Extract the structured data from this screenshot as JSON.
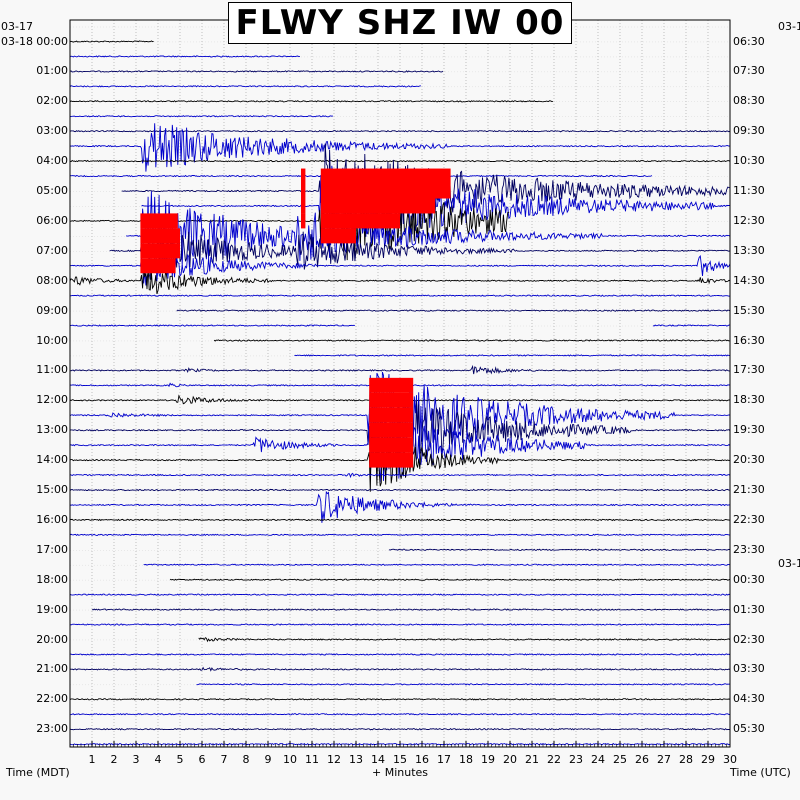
{
  "title": "FLWY SHZ IW 00",
  "left_dates": {
    "top": "03-17",
    "row0": "03-18"
  },
  "right_dates": {
    "top": "03-1",
    "middle": "03-1"
  },
  "left_axis_label": "Time (MDT)",
  "right_axis_label": "Time (UTC)",
  "x_axis_label": "+ Minutes",
  "colors": {
    "blue": "#0000cc",
    "navy": "#000060",
    "black": "#000000",
    "red": "#ff0000",
    "grid": "#999999"
  },
  "chart_data": {
    "type": "line",
    "title": "FLWY SHZ IW 00",
    "xlabel": "+ Minutes",
    "ylabel_left": "Time (MDT)",
    "ylabel_right": "Time (UTC)",
    "xlim": [
      0,
      30
    ],
    "x_ticks": [
      "1",
      "2",
      "3",
      "4",
      "5",
      "6",
      "7",
      "8",
      "9",
      "10",
      "11",
      "12",
      "13",
      "14",
      "15",
      "16",
      "17",
      "18",
      "19",
      "20",
      "21",
      "22",
      "23",
      "24",
      "25",
      "26",
      "27",
      "28",
      "29",
      "30"
    ],
    "rows_per_hour": 2,
    "left_hour_labels": [
      "00:00",
      "01:00",
      "02:00",
      "03:00",
      "04:00",
      "05:00",
      "06:00",
      "07:00",
      "08:00",
      "09:00",
      "10:00",
      "11:00",
      "12:00",
      "13:00",
      "14:00",
      "15:00",
      "16:00",
      "17:00",
      "18:00",
      "19:00",
      "20:00",
      "21:00",
      "22:00",
      "23:00"
    ],
    "right_hour_labels": [
      "06:30",
      "07:30",
      "08:30",
      "09:30",
      "10:30",
      "11:30",
      "12:30",
      "13:30",
      "14:30",
      "15:30",
      "16:30",
      "17:30",
      "18:30",
      "19:30",
      "20:30",
      "21:30",
      "22:30",
      "23:30",
      "00:30",
      "01:30",
      "02:30",
      "03:30",
      "04:30",
      "05:30"
    ],
    "trace_colors": [
      "#000000",
      "#0000cc",
      "#000060",
      "#0000cc"
    ],
    "gaps": [
      {
        "row": 0,
        "x0": 3.8,
        "x1": 30
      },
      {
        "row": 1,
        "x0": 10.5,
        "x1": 30
      },
      {
        "row": 2,
        "x0": 17.0,
        "x1": 30
      },
      {
        "row": 3,
        "x0": 16.0,
        "x1": 30
      },
      {
        "row": 4,
        "x0": 22.0,
        "x1": 30
      },
      {
        "row": 5,
        "x0": 12.0,
        "x1": 30
      },
      {
        "row": 9,
        "x0": 26.5,
        "x1": 30
      },
      {
        "row": 10,
        "x0": 0,
        "x1": 2.3
      },
      {
        "row": 11,
        "x0": 0,
        "x1": 3.2
      },
      {
        "row": 12,
        "x0": 20.0,
        "x1": 30
      },
      {
        "row": 13,
        "x0": 0,
        "x1": 2.5
      },
      {
        "row": 14,
        "x0": 0,
        "x1": 1.8
      },
      {
        "row": 18,
        "x0": 0,
        "x1": 4.8
      },
      {
        "row": 19,
        "x0": 13.0,
        "x1": 26.5
      },
      {
        "row": 20,
        "x0": 0,
        "x1": 6.5
      },
      {
        "row": 21,
        "x0": 0,
        "x1": 10.2
      },
      {
        "row": 34,
        "x0": 0,
        "x1": 14.5
      },
      {
        "row": 35,
        "x0": 0,
        "x1": 3.3
      },
      {
        "row": 36,
        "x0": 0,
        "x1": 4.5
      },
      {
        "row": 38,
        "x0": 0,
        "x1": 1.0
      },
      {
        "row": 40,
        "x0": 0,
        "x1": 5.8
      },
      {
        "row": 43,
        "x0": 0,
        "x1": 5.7
      }
    ],
    "events": [
      {
        "row": 7,
        "x": 3.2,
        "peak": 28,
        "duration": 14,
        "color": "#0000cc"
      },
      {
        "row": 13,
        "x": 3.2,
        "peak": 50,
        "duration": 12,
        "color": "#0000cc"
      },
      {
        "row": 14,
        "x": 3.2,
        "peak": 35,
        "duration": 10,
        "color": "#000060"
      },
      {
        "row": 15,
        "x": 3.2,
        "peak": 24,
        "duration": 8,
        "color": "#0000cc"
      },
      {
        "row": 16,
        "x": 0,
        "peak": 6,
        "duration": 3,
        "color": "#000000"
      },
      {
        "row": 16,
        "x": 3.2,
        "peak": 18,
        "duration": 6,
        "color": "#000000"
      },
      {
        "row": 10,
        "x": 11.3,
        "peak": 50,
        "duration": 20,
        "color": "#0000cc"
      },
      {
        "row": 11,
        "x": 11.3,
        "peak": 50,
        "duration": 18,
        "color": "#000060"
      },
      {
        "row": 12,
        "x": 11.3,
        "peak": 50,
        "duration": 16,
        "color": "#0000cc"
      },
      {
        "row": 13,
        "x": 10.2,
        "peak": 30,
        "duration": 14,
        "color": "#0000cc"
      },
      {
        "row": 14,
        "x": 10.2,
        "peak": 22,
        "duration": 10,
        "color": "#000060"
      },
      {
        "row": 12,
        "x": 29.5,
        "peak": 4,
        "duration": 1,
        "color": "#0000cc"
      },
      {
        "row": 15,
        "x": 28.5,
        "peak": 14,
        "duration": 2,
        "color": "#0000cc"
      },
      {
        "row": 16,
        "x": 28.5,
        "peak": 6,
        "duration": 1.5,
        "color": "#000000"
      },
      {
        "row": 22,
        "x": 18.2,
        "peak": 6,
        "duration": 3,
        "color": "#000060"
      },
      {
        "row": 22,
        "x": 5.2,
        "peak": 2,
        "duration": 2,
        "color": "#0000cc"
      },
      {
        "row": 23,
        "x": 4.4,
        "peak": 3,
        "duration": 1,
        "color": "#0000cc"
      },
      {
        "row": 24,
        "x": 4.8,
        "peak": 5,
        "duration": 4,
        "color": "#000060"
      },
      {
        "row": 25,
        "x": 1.7,
        "peak": 3,
        "duration": 3,
        "color": "#0000cc"
      },
      {
        "row": 25,
        "x": 13.5,
        "peak": 50,
        "duration": 14,
        "color": "#0000cc"
      },
      {
        "row": 26,
        "x": 13.5,
        "peak": 50,
        "duration": 12,
        "color": "#000060"
      },
      {
        "row": 27,
        "x": 8.3,
        "peak": 10,
        "duration": 4,
        "color": "#0000cc"
      },
      {
        "row": 27,
        "x": 13.5,
        "peak": 50,
        "duration": 10,
        "color": "#0000cc"
      },
      {
        "row": 28,
        "x": 13.5,
        "peak": 40,
        "duration": 6,
        "color": "#000000"
      },
      {
        "row": 29,
        "x": 12.5,
        "peak": 2,
        "duration": 2,
        "color": "#0000cc"
      },
      {
        "row": 31,
        "x": 11.2,
        "peak": 20,
        "duration": 6,
        "color": "#000060"
      },
      {
        "row": 31,
        "x": 14.5,
        "peak": 5,
        "duration": 4,
        "color": "#000060"
      },
      {
        "row": 40,
        "x": 5.3,
        "peak": 3,
        "duration": 3,
        "color": "#0000cc"
      },
      {
        "row": 42,
        "x": 5.9,
        "peak": 2,
        "duration": 2.5,
        "color": "#0000cc"
      }
    ],
    "clipped": [
      {
        "row": 12,
        "x0": 3.2,
        "x1": 4.9
      },
      {
        "row": 13,
        "x0": 3.2,
        "x1": 5.0
      },
      {
        "row": 14,
        "x0": 3.2,
        "x1": 5.0
      },
      {
        "row": 15,
        "x0": 3.2,
        "x1": 4.8
      },
      {
        "row": 9,
        "x0": 10.5,
        "x1": 10.7
      },
      {
        "row": 10,
        "x0": 10.5,
        "x1": 10.7
      },
      {
        "row": 11,
        "x0": 10.5,
        "x1": 10.7
      },
      {
        "row": 12,
        "x0": 10.5,
        "x1": 10.7
      },
      {
        "row": 9,
        "x0": 11.4,
        "x1": 17.3
      },
      {
        "row": 10,
        "x0": 11.4,
        "x1": 17.3
      },
      {
        "row": 11,
        "x0": 11.4,
        "x1": 16.6
      },
      {
        "row": 12,
        "x0": 11.4,
        "x1": 15.0
      },
      {
        "row": 13,
        "x0": 11.4,
        "x1": 13.0
      },
      {
        "row": 23,
        "x0": 13.6,
        "x1": 15.6
      },
      {
        "row": 24,
        "x0": 13.6,
        "x1": 15.6
      },
      {
        "row": 25,
        "x0": 13.6,
        "x1": 15.6
      },
      {
        "row": 26,
        "x0": 13.6,
        "x1": 15.6
      },
      {
        "row": 27,
        "x0": 13.6,
        "x1": 15.6
      },
      {
        "row": 28,
        "x0": 13.6,
        "x1": 15.6
      }
    ]
  }
}
